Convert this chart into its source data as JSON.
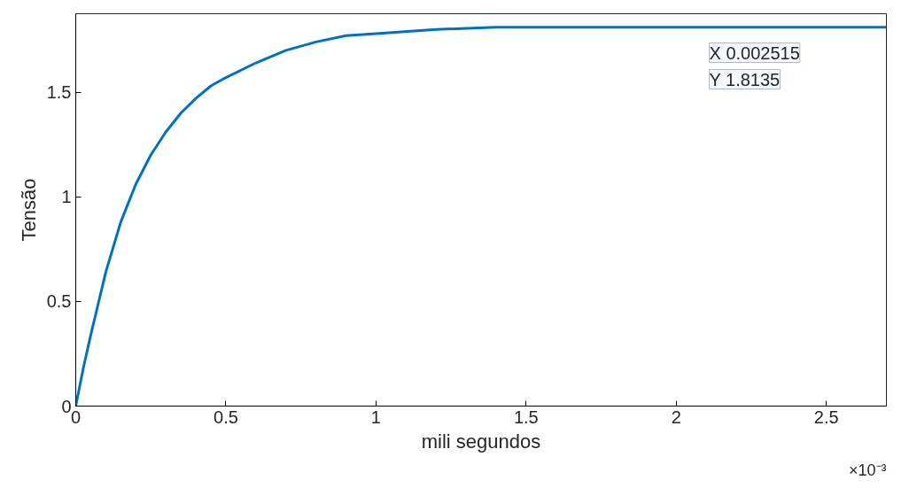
{
  "chart_data": {
    "type": "line",
    "xlabel": "mili segundos",
    "ylabel": "Tensão",
    "x": [
      0,
      0.025,
      0.05,
      0.075,
      0.1,
      0.15,
      0.2,
      0.25,
      0.3,
      0.35,
      0.4,
      0.45,
      0.5,
      0.6,
      0.7,
      0.8,
      0.9,
      1,
      1.2,
      1.4,
      1.6,
      2,
      2.5,
      2.7
    ],
    "series": [
      {
        "color": "#0072bd",
        "values": [
          0,
          0.18,
          0.34,
          0.49,
          0.64,
          0.88,
          1.06,
          1.2,
          1.31,
          1.4,
          1.47,
          1.53,
          1.57,
          1.64,
          1.7,
          1.74,
          1.77,
          1.78,
          1.8,
          1.81,
          1.81,
          1.81,
          1.81,
          1.81
        ]
      }
    ],
    "xlim": [
      0,
      2.7
    ],
    "ylim": [
      0,
      1.875
    ],
    "xticks": [
      0,
      0.5,
      1,
      1.5,
      2,
      2.5
    ],
    "yticks": [
      0,
      0.5,
      1,
      1.5
    ],
    "grid": false,
    "marker": "none",
    "line_style": "solid",
    "annotations": [
      "X 0.002515",
      "Y 1.8135",
      "×10⁻³"
    ]
  }
}
